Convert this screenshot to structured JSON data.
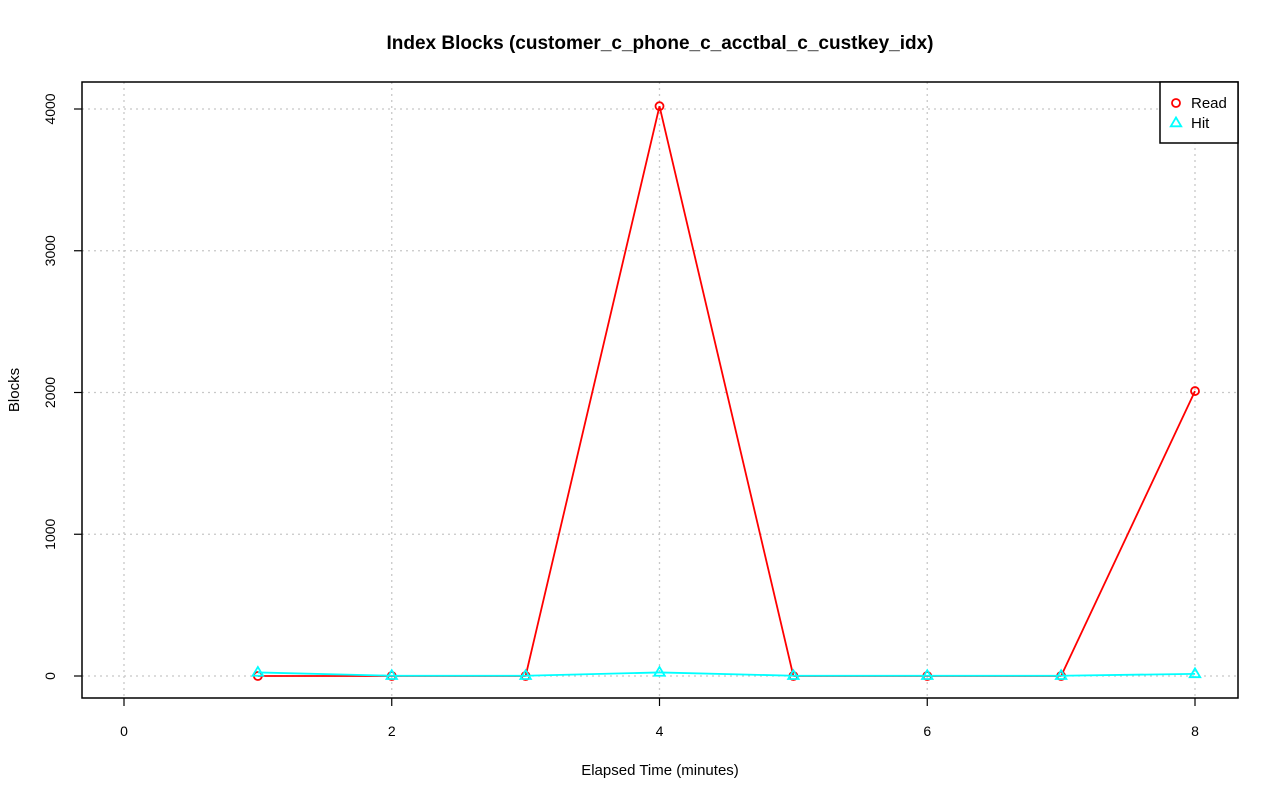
{
  "chart_data": {
    "type": "line",
    "title": "Index Blocks (customer_c_phone_c_acctbal_c_custkey_idx)",
    "xlabel": "Elapsed Time (minutes)",
    "ylabel": "Blocks",
    "xlim": [
      0,
      8
    ],
    "ylim": [
      0,
      4000
    ],
    "x_ticks": [
      0,
      2,
      4,
      6,
      8
    ],
    "y_ticks": [
      0,
      1000,
      2000,
      3000,
      4000
    ],
    "grid": true,
    "legend_position": "top-right",
    "series": [
      {
        "name": "Read",
        "color": "#ff0000",
        "marker": "circle",
        "x": [
          1,
          2,
          3,
          4,
          5,
          6,
          7,
          8
        ],
        "y": [
          0,
          0,
          0,
          4020,
          0,
          0,
          0,
          2010
        ]
      },
      {
        "name": "Hit",
        "color": "#00ffff",
        "marker": "triangle",
        "x": [
          1,
          2,
          3,
          4,
          5,
          6,
          7,
          8
        ],
        "y": [
          25,
          2,
          2,
          25,
          2,
          2,
          2,
          15
        ]
      }
    ]
  }
}
